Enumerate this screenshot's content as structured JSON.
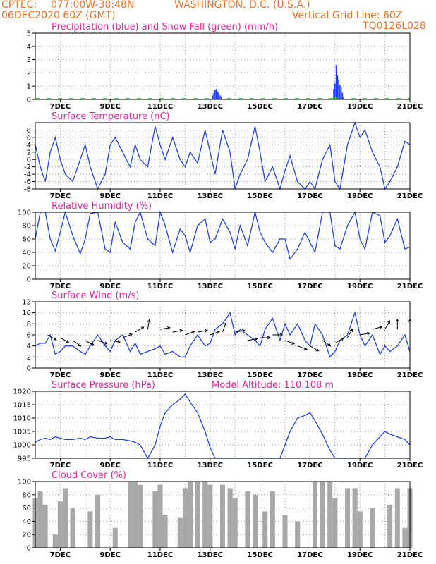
{
  "header": {
    "source": "CPTEC:",
    "coords": "077:00W-38:48N",
    "location": "WASHINGTON, D.C. (U.S.A.)",
    "init": "06DEC2020 60Z (GMT)",
    "grid_note": "Vertical Grid Line: 60Z",
    "model": "TQ0126L028"
  },
  "x_labels": [
    "7DEC",
    "9DEC",
    "11DEC",
    "13DEC",
    "15DEC",
    "17DEC",
    "19DEC",
    "21DEC"
  ],
  "chart_data": [
    {
      "type": "bar",
      "title": "Precipitation (blue) and Snow Fall (green) (mm/h)",
      "ylim": [
        0,
        5
      ],
      "yticks": [
        0,
        1,
        2,
        3,
        4,
        5
      ],
      "series": [
        {
          "name": "Precipitation",
          "color": "#1e3cff",
          "x": [
            7.1,
            7.15,
            7.2,
            7.25,
            7.3,
            7.35,
            7.4,
            7.45,
            11.95,
            12.0,
            12.05,
            12.1,
            12.15,
            12.2,
            12.25,
            12.3,
            12.35
          ],
          "values": [
            0.3,
            0.5,
            0.7,
            0.8,
            0.6,
            0.5,
            0.3,
            0.2,
            0.8,
            1.2,
            2.6,
            1.8,
            1.5,
            1.1,
            0.9,
            0.5,
            0.2
          ]
        },
        {
          "name": "Snow Fall",
          "color": "#00c000",
          "x": [
            11.95,
            12.0,
            12.05,
            12.1
          ],
          "values": [
            0.1,
            0.2,
            0.15,
            0.1
          ]
        }
      ]
    },
    {
      "type": "line",
      "title": "Surface Temperature (nC)",
      "ylim": [
        -8,
        10
      ],
      "yticks": [
        -8,
        -6,
        -4,
        -2,
        0,
        2,
        4,
        6,
        8
      ],
      "series": [
        {
          "name": "Temperature",
          "color": "#2244dd",
          "x": [
            0.0,
            0.2,
            0.4,
            0.6,
            0.8,
            1.0,
            1.2,
            1.5,
            1.8,
            2.0,
            2.2,
            2.5,
            2.8,
            3.0,
            3.2,
            3.5,
            3.8,
            4.0,
            4.2,
            4.5,
            4.8,
            5.0,
            5.2,
            5.5,
            5.8,
            6.0,
            6.2,
            6.5,
            6.8,
            7.0,
            7.2,
            7.5,
            7.8,
            8.0,
            8.2,
            8.5,
            8.8,
            9.0,
            9.2,
            9.5,
            9.8,
            10.0,
            10.2,
            10.5,
            10.8,
            11.0,
            11.2,
            11.5,
            11.8,
            12.0,
            12.2,
            12.5,
            12.8,
            13.0,
            13.2,
            13.5,
            13.8,
            14.0,
            14.2,
            14.5,
            14.8,
            15.0
          ],
          "values": [
            4,
            -2,
            -6,
            2,
            6,
            0,
            -4,
            -6,
            0,
            4,
            -2,
            -8,
            -4,
            4,
            6,
            2,
            -2,
            4,
            0,
            -2,
            9,
            4,
            0,
            6,
            0,
            -2,
            2,
            -1,
            8,
            2,
            -4,
            8,
            2,
            -8,
            -4,
            0,
            9,
            2,
            -6,
            -2,
            -8,
            -3,
            1,
            -6,
            -8,
            -6,
            -8,
            0,
            4,
            -6,
            -8,
            4,
            10,
            6,
            8,
            2,
            -2,
            -8,
            -6,
            -2,
            5,
            4
          ]
        }
      ]
    },
    {
      "type": "line",
      "title": "Relative Humidity (%)",
      "ylim": [
        0,
        100
      ],
      "yticks": [
        0,
        20,
        40,
        60,
        80,
        100
      ],
      "series": [
        {
          "name": "Relative Humidity",
          "color": "#2244dd",
          "x": [
            0.0,
            0.2,
            0.4,
            0.6,
            0.8,
            1.0,
            1.2,
            1.5,
            1.8,
            2.0,
            2.2,
            2.5,
            2.8,
            3.0,
            3.2,
            3.5,
            3.8,
            4.0,
            4.2,
            4.5,
            4.8,
            5.0,
            5.2,
            5.5,
            5.8,
            6.0,
            6.2,
            6.5,
            6.8,
            7.0,
            7.2,
            7.5,
            7.8,
            8.0,
            8.2,
            8.5,
            8.8,
            9.0,
            9.2,
            9.5,
            9.8,
            10.0,
            10.2,
            10.5,
            10.8,
            11.0,
            11.2,
            11.5,
            11.8,
            12.0,
            12.2,
            12.5,
            12.8,
            13.0,
            13.2,
            13.5,
            13.8,
            14.0,
            14.2,
            14.5,
            14.8,
            15.0
          ],
          "values": [
            60,
            100,
            100,
            60,
            42,
            70,
            100,
            65,
            38,
            60,
            98,
            100,
            45,
            40,
            85,
            55,
            45,
            85,
            100,
            60,
            50,
            100,
            80,
            40,
            75,
            65,
            40,
            80,
            90,
            55,
            60,
            90,
            70,
            45,
            80,
            50,
            100,
            70,
            55,
            40,
            60,
            60,
            30,
            45,
            70,
            55,
            40,
            100,
            100,
            50,
            45,
            80,
            100,
            60,
            45,
            100,
            95,
            55,
            65,
            90,
            45,
            48
          ]
        }
      ]
    },
    {
      "type": "line",
      "title": "Surface Wind (m/s)",
      "ylim": [
        0,
        12
      ],
      "yticks": [
        0,
        2,
        4,
        6,
        8,
        10,
        12
      ],
      "series": [
        {
          "name": "Wind Speed",
          "color": "#2244dd",
          "x": [
            0.0,
            0.2,
            0.4,
            0.6,
            0.8,
            1.0,
            1.2,
            1.5,
            1.8,
            2.0,
            2.2,
            2.5,
            2.8,
            3.0,
            3.2,
            3.5,
            3.8,
            4.0,
            4.2,
            4.5,
            4.8,
            5.0,
            5.2,
            5.5,
            5.8,
            6.0,
            6.2,
            6.5,
            6.8,
            7.0,
            7.2,
            7.5,
            7.8,
            8.0,
            8.2,
            8.5,
            8.8,
            9.0,
            9.2,
            9.5,
            9.8,
            10.0,
            10.2,
            10.5,
            10.8,
            11.0,
            11.2,
            11.5,
            11.8,
            12.0,
            12.2,
            12.5,
            12.8,
            13.0,
            13.2,
            13.5,
            13.8,
            14.0,
            14.2,
            14.5,
            14.8,
            15.0
          ],
          "values": [
            4,
            4.5,
            4.5,
            6,
            2.5,
            3,
            4,
            4,
            3,
            2.5,
            4,
            6,
            4,
            3,
            5,
            6,
            3,
            4.5,
            2.5,
            3,
            3.5,
            4,
            2.5,
            3,
            2,
            2,
            4,
            6,
            4,
            4.5,
            7,
            8,
            10,
            6,
            7,
            6,
            5,
            4,
            7,
            9,
            5,
            8,
            6,
            8,
            5,
            4,
            8,
            6,
            2,
            3,
            5,
            6,
            10,
            6,
            4,
            6,
            2.5,
            4,
            3,
            4,
            6,
            3
          ]
        }
      ],
      "vectors": {
        "x": [
          0.5,
          1.0,
          1.5,
          2.0,
          2.5,
          3.0,
          3.5,
          4.0,
          4.5,
          5.0,
          5.5,
          6.0,
          6.5,
          7.0,
          7.5,
          8.0,
          8.5,
          9.0,
          9.5,
          10.0,
          10.5,
          11.0,
          11.5,
          12.0,
          12.5,
          13.0,
          13.5,
          14.0,
          14.5,
          15.0
        ],
        "speed": [
          6,
          5.5,
          5,
          5,
          5,
          5,
          5.5,
          6.5,
          7,
          7,
          6.5,
          6,
          6.5,
          6,
          6.5,
          6.5,
          5,
          5.5,
          6,
          5,
          4,
          4,
          5,
          4.5,
          5.5,
          6,
          7,
          7,
          7,
          7
        ],
        "dir_deg": [
          -30,
          -30,
          -35,
          -30,
          -20,
          -10,
          20,
          30,
          80,
          10,
          10,
          20,
          10,
          20,
          70,
          10,
          10,
          0,
          0,
          -20,
          -20,
          -30,
          -35,
          30,
          60,
          10,
          15,
          60,
          90,
          90
        ]
      }
    },
    {
      "type": "line",
      "title": "Surface Pressure (hPa)",
      "annotation": "Model Altitude: 110.108  m",
      "ylim": [
        995,
        1020
      ],
      "yticks": [
        995,
        1000,
        1005,
        1010,
        1015,
        1020
      ],
      "series": [
        {
          "name": "Pressure",
          "color": "#2244dd",
          "x": [
            0.0,
            0.2,
            0.4,
            0.6,
            0.8,
            1.0,
            1.2,
            1.5,
            1.8,
            2.0,
            2.2,
            2.5,
            2.8,
            3.0,
            3.2,
            3.5,
            3.8,
            4.0,
            4.2,
            4.5,
            4.8,
            5.0,
            5.2,
            5.5,
            5.8,
            6.0,
            6.2,
            6.5,
            6.8,
            7.0,
            7.2,
            7.5,
            7.8,
            8.0,
            8.2,
            8.5,
            8.8,
            9.0,
            9.2,
            9.5,
            9.8,
            10.0,
            10.2,
            10.5,
            10.8,
            11.0,
            11.2,
            11.5,
            11.8,
            12.0,
            12.2,
            12.5,
            12.8,
            13.0,
            13.2,
            13.5,
            13.8,
            14.0,
            14.2,
            14.5,
            14.8,
            15.0
          ],
          "values": [
            1001,
            1002,
            1002.5,
            1002,
            1003,
            1002.5,
            1002,
            1002,
            1002.5,
            1002,
            1003,
            1002.5,
            1002.5,
            1003,
            1002,
            1002,
            1001.5,
            1001,
            1000,
            995,
            1000,
            1007,
            1012,
            1015,
            1017,
            1019,
            1016,
            1012,
            1005,
            999,
            995,
            995,
            995,
            995,
            995,
            995,
            995,
            995,
            995,
            995,
            995,
            1000,
            1005,
            1010,
            1011,
            1012,
            1009,
            1004,
            998,
            995,
            995,
            995,
            995,
            995,
            995,
            1000,
            1003,
            1005,
            1004,
            1003,
            1002,
            1000
          ]
        }
      ]
    },
    {
      "type": "bar",
      "title": "Cloud Cover (%)",
      "ylim": [
        0,
        100
      ],
      "yticks": [
        0,
        20,
        40,
        60,
        80,
        100
      ],
      "series": [
        {
          "name": "Cloud Cover",
          "color": "#a8a8a8",
          "x": [
            0.0,
            0.2,
            0.4,
            0.6,
            0.8,
            1.0,
            1.2,
            1.5,
            1.8,
            2.0,
            2.2,
            2.5,
            2.8,
            3.0,
            3.2,
            3.5,
            3.8,
            4.0,
            4.2,
            4.5,
            4.8,
            5.0,
            5.2,
            5.5,
            5.8,
            6.0,
            6.2,
            6.5,
            6.8,
            7.0,
            7.2,
            7.5,
            7.8,
            8.0,
            8.2,
            8.5,
            8.8,
            9.0,
            9.2,
            9.5,
            9.8,
            10.0,
            10.2,
            10.5,
            10.8,
            11.0,
            11.2,
            11.5,
            11.8,
            12.0,
            12.2,
            12.5,
            12.8,
            13.0,
            13.2,
            13.5,
            13.8,
            14.0,
            14.2,
            14.5,
            14.8,
            15.0
          ],
          "values": [
            75,
            85,
            65,
            0,
            20,
            70,
            90,
            60,
            0,
            0,
            55,
            80,
            0,
            0,
            30,
            0,
            100,
            100,
            95,
            0,
            85,
            95,
            50,
            0,
            45,
            90,
            100,
            100,
            100,
            95,
            0,
            95,
            90,
            75,
            0,
            85,
            80,
            0,
            55,
            85,
            0,
            50,
            0,
            40,
            0,
            0,
            100,
            100,
            100,
            75,
            0,
            90,
            90,
            55,
            0,
            60,
            0,
            0,
            65,
            90,
            30,
            90
          ]
        }
      ]
    }
  ]
}
